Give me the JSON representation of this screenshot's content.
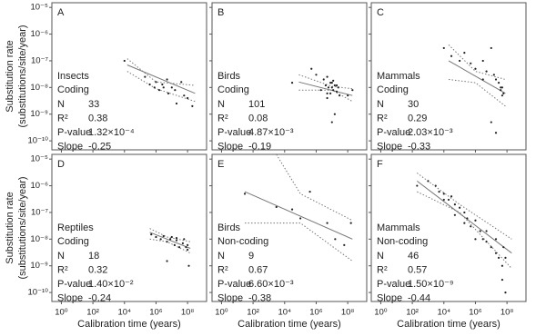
{
  "chart_data": [
    {
      "type": "scatter",
      "title": "A",
      "taxon": "Insects",
      "gene": "Coding",
      "ylabel": "Substitution rate",
      "ylabel2": "(substitutions/site/year)",
      "x": [
        10000.0,
        200000.0,
        400000.0,
        800000.0,
        1000000.0,
        1600000.0,
        2500000.0,
        3000000.0,
        5000000.0,
        6000000.0,
        10000000.0,
        16000000.0,
        20000000.0,
        40000000.0,
        60000000.0,
        100000000.0,
        200000000.0
      ],
      "y": [
        1e-07,
        2.5e-08,
        1.3e-08,
        1e-08,
        1.6e-08,
        8e-09,
        1.3e-08,
        1e-08,
        2e-08,
        6e-09,
        1e-08,
        8e-09,
        2.5e-09,
        1.6e-08,
        5e-09,
        4e-09,
        2e-09
      ],
      "fit": {
        "x": [
          15000.0,
          300000000.0
        ],
        "y": [
          7e-08,
          6e-09
        ]
      },
      "band_upper": {
        "x": [
          15000.0,
          1000000.0,
          300000000.0
        ],
        "y": [
          1.2e-07,
          1.6e-08,
          1.2e-08
        ]
      },
      "band_lower": {
        "x": [
          15000.0,
          1000000.0,
          300000000.0
        ],
        "y": [
          4e-08,
          9e-09,
          3e-09
        ]
      },
      "stats": [
        {
          "label": "N",
          "value": 33
        },
        {
          "label": "R²",
          "value": 0.38
        },
        {
          "label": "P-value",
          "value": {
            "value": 0.000132,
            "label": "1.32×10⁻⁴"
          }
        },
        {
          "label": "Slope",
          "value": -0.25
        }
      ],
      "xlim": [
        0.25,
        1600000000.0
      ],
      "ylim": [
        4.6e-11,
        1.5e-05
      ],
      "log": true,
      "xticks": [
        1,
        100,
        10000.0,
        1000000.0,
        100000000.0
      ],
      "yticks": [
        {
          "value": 1e-05,
          "label": "10⁻⁵"
        },
        {
          "value": 1e-06,
          "label": "10⁻⁶"
        },
        {
          "value": 1e-07,
          "label": "10⁻⁷"
        },
        {
          "value": 1e-08,
          "label": "10⁻⁸"
        },
        {
          "value": 1e-09,
          "label": "10⁻⁹"
        },
        {
          "value": 1e-10,
          "label": "10⁻¹⁰"
        }
      ]
    },
    {
      "type": "scatter",
      "title": "B",
      "taxon": "Birds",
      "gene": "Coding",
      "x": [
        30000.0,
        500000.0,
        1000000.0,
        2000000.0,
        3000000.0,
        4000000.0,
        5000000.0,
        6000000.0,
        8000000.0,
        10000000.0,
        12000000.0,
        15000000.0,
        20000000.0,
        25000000.0,
        30000000.0,
        10000000.0,
        8000000.0,
        12000000.0,
        20000000.0,
        5000000.0,
        15000000.0,
        100000000.0,
        200000000.0,
        5000000.0,
        10000000.0
      ],
      "y": [
        1.5e-08,
        5e-08,
        3e-08,
        8e-09,
        2e-08,
        1.2e-08,
        6e-09,
        1e-08,
        1.5e-08,
        1e-08,
        8e-09,
        1.2e-08,
        7e-09,
        1e-08,
        5e-09,
        1.5e-08,
        6e-09,
        1.8e-08,
        1.2e-08,
        2.5e-08,
        1e-09,
        5e-09,
        8e-09,
        4e-09,
        5e-10
      ],
      "fit": {
        "x": [
          80000.0,
          200000000.0
        ],
        "y": [
          1.6e-08,
          5e-09
        ]
      },
      "band_upper": {
        "x": [
          80000.0,
          10000000.0,
          200000000.0
        ],
        "y": [
          3e-08,
          1.1e-08,
          9e-09
        ]
      },
      "band_lower": {
        "x": [
          80000.0,
          10000000.0,
          200000000.0
        ],
        "y": [
          8e-09,
          8e-09,
          3e-09
        ]
      },
      "stats": [
        {
          "label": "N",
          "value": 101
        },
        {
          "label": "R²",
          "value": 0.08
        },
        {
          "label": "P-value",
          "value": {
            "value": 0.00487,
            "label": "4.87×10⁻³"
          }
        },
        {
          "label": "Slope",
          "value": -0.19
        }
      ],
      "xlim": [
        0.25,
        1600000000.0
      ],
      "ylim": [
        4.6e-11,
        1.5e-05
      ],
      "log": true,
      "xticks": [
        1,
        100,
        10000.0,
        1000000.0,
        100000000.0
      ],
      "yticks": [
        1e-05,
        1e-06,
        1e-07,
        1e-08,
        1e-09,
        1e-10
      ]
    },
    {
      "type": "scatter",
      "title": "C",
      "taxon": "Mammals",
      "gene": "Coding",
      "x": [
        10000.0,
        30000.0,
        100000.0,
        200000.0,
        500000.0,
        1000000.0,
        3000000.0,
        5000000.0,
        10000000.0,
        15000000.0,
        20000000.0,
        30000000.0,
        40000000.0,
        50000000.0,
        60000000.0,
        3000000.0,
        10000000.0,
        20000000.0,
        40000000.0,
        50000000.0
      ],
      "y": [
        3e-07,
        1.5e-07,
        1e-07,
        2e-07,
        8e-08,
        5e-08,
        1e-07,
        4e-08,
        3e-07,
        3e-08,
        2e-08,
        1.5e-08,
        8e-09,
        1e-08,
        6e-09,
        2e-08,
        5e-10,
        2e-10,
        1e-08,
        5e-09
      ],
      "fit": {
        "x": [
          20000.0,
          80000000.0
        ],
        "y": [
          1e-07,
          6e-09
        ]
      },
      "band_upper": {
        "x": [
          20000.0,
          1000000.0,
          80000000.0
        ],
        "y": [
          4e-07,
          4e-08,
          2e-08
        ]
      },
      "band_lower": {
        "x": [
          20000.0,
          1000000.0,
          80000000.0
        ],
        "y": [
          2e-08,
          1.5e-08,
          2e-09
        ]
      },
      "stats": [
        {
          "label": "N",
          "value": 30
        },
        {
          "label": "R²",
          "value": 0.29
        },
        {
          "label": "P-value",
          "value": {
            "value": 0.00203,
            "label": "2.03×10⁻³"
          }
        },
        {
          "label": "Slope",
          "value": -0.33
        }
      ],
      "xlim": [
        0.25,
        1600000000.0
      ],
      "ylim": [
        4.6e-11,
        1.5e-05
      ],
      "log": true,
      "xticks": [
        1,
        100,
        10000.0,
        1000000.0,
        100000000.0
      ],
      "yticks": [
        1e-05,
        1e-06,
        1e-07,
        1e-08,
        1e-09,
        1e-10
      ]
    },
    {
      "type": "scatter",
      "title": "D",
      "taxon": "Reptiles",
      "gene": "Coding",
      "ylabel": "Substitution rate",
      "ylabel2": "(substitutions/site/year)",
      "xlabel": "Calibration time (years)",
      "x": [
        500000.0,
        1000000.0,
        2000000.0,
        3000000.0,
        5000000.0,
        8000000.0,
        10000000.0,
        15000000.0,
        20000000.0,
        30000000.0,
        50000000.0,
        80000000.0,
        100000000.0,
        120000000.0,
        5000000.0,
        20000000.0,
        60000000.0,
        100000000.0
      ],
      "y": [
        1.5e-08,
        1.2e-08,
        1e-08,
        1.3e-08,
        8e-09,
        1e-08,
        1.2e-08,
        6e-09,
        9e-09,
        5e-09,
        7e-09,
        5e-09,
        4e-09,
        1e-09,
        1.5e-09,
        1.1e-08,
        1e-08,
        6e-09
      ],
      "fit": {
        "x": [
          400000.0,
          150000000.0
        ],
        "y": [
          1.8e-08,
          4.5e-09
        ]
      },
      "band_upper": {
        "x": [
          400000.0,
          5000000.0,
          150000000.0
        ],
        "y": [
          2.5e-08,
          1.2e-08,
          8e-09
        ]
      },
      "band_lower": {
        "x": [
          400000.0,
          5000000.0,
          150000000.0
        ],
        "y": [
          1e-08,
          8e-09,
          3e-09
        ]
      },
      "stats": [
        {
          "label": "N",
          "value": 18
        },
        {
          "label": "R²",
          "value": 0.32
        },
        {
          "label": "P-value",
          "value": {
            "value": 0.014,
            "label": "1.40×10⁻²"
          }
        },
        {
          "label": "Slope",
          "value": -0.24
        }
      ],
      "xlim": [
        0.25,
        1600000000.0
      ],
      "ylim": [
        4.6e-11,
        1.5e-05
      ],
      "log": true,
      "xticks": [
        {
          "value": 1,
          "label": "10⁰"
        },
        {
          "value": 100,
          "label": "10²"
        },
        {
          "value": 10000.0,
          "label": "10⁴"
        },
        {
          "value": 1000000.0,
          "label": "10⁶"
        },
        {
          "value": 100000000.0,
          "label": "10⁸"
        }
      ],
      "yticks": [
        {
          "value": 1e-05,
          "label": "10⁻⁵"
        },
        {
          "value": 1e-06,
          "label": "10⁻⁶"
        },
        {
          "value": 1e-07,
          "label": "10⁻⁷"
        },
        {
          "value": 1e-08,
          "label": "10⁻⁸"
        },
        {
          "value": 1e-09,
          "label": "10⁻⁹"
        },
        {
          "value": 1e-10,
          "label": "10⁻¹⁰"
        }
      ]
    },
    {
      "type": "scatter",
      "title": "E",
      "taxon": "Birds",
      "gene": "Non-coding",
      "xlabel": "Calibration time (years)",
      "x": [
        30,
        3000.0,
        30000.0,
        100000.0,
        400000.0,
        5000000.0,
        16000000.0,
        60000000.0,
        160000000.0
      ],
      "y": [
        5e-07,
        1.6e-07,
        1.3e-07,
        6e-08,
        6e-07,
        4e-08,
        1e-08,
        6e-09,
        4e-08
      ],
      "fit": {
        "x": [
          30,
          200000000.0
        ],
        "y": [
          6e-07,
          1e-08
        ]
      },
      "band_upper": {
        "x": [
          3000.0,
          100000.0,
          200000000.0
        ],
        "y": [
          1.5e-05,
          5e-07,
          5e-08
        ]
      },
      "band_lower": {
        "x": [
          30,
          100000.0,
          200000000.0
        ],
        "y": [
          4e-08,
          4e-08,
          1.5e-09
        ]
      },
      "stats": [
        {
          "label": "N",
          "value": 9
        },
        {
          "label": "R²",
          "value": 0.67
        },
        {
          "label": "P-value",
          "value": {
            "value": 0.0066,
            "label": "6.60×10⁻³"
          }
        },
        {
          "label": "Slope",
          "value": -0.38
        }
      ],
      "xlim": [
        0.25,
        1600000000.0
      ],
      "ylim": [
        4.6e-11,
        1.5e-05
      ],
      "log": true,
      "xticks": [
        {
          "value": 1,
          "label": "10⁰"
        },
        {
          "value": 100,
          "label": "10²"
        },
        {
          "value": 10000.0,
          "label": "10⁴"
        },
        {
          "value": 1000000.0,
          "label": "10⁶"
        },
        {
          "value": 100000000.0,
          "label": "10⁸"
        }
      ],
      "yticks": [
        1e-05,
        1e-06,
        1e-07,
        1e-08,
        1e-09,
        1e-10
      ]
    },
    {
      "type": "scatter",
      "title": "F",
      "taxon": "Mammals",
      "gene": "Non-coding",
      "xlabel": "Calibration time (years)",
      "x": [
        200,
        1000.0,
        3000.0,
        5000.0,
        10000.0,
        20000.0,
        30000.0,
        50000.0,
        100000.0,
        200000.0,
        300000.0,
        500000.0,
        1000000.0,
        2000000.0,
        3000000.0,
        5000000.0,
        10000000.0,
        20000000.0,
        30000000.0,
        50000000.0,
        60000000.0,
        80000000.0,
        10000.0,
        50000.0,
        200000.0,
        1000000.0,
        5000000.0,
        20000000.0,
        50000000.0,
        80000000.0
      ],
      "y": [
        1e-06,
        1.5e-06,
        1e-06,
        6e-07,
        5e-07,
        3e-07,
        4e-07,
        2e-07,
        1.5e-07,
        1e-07,
        6e-08,
        3e-08,
        5e-08,
        2e-08,
        1e-08,
        8e-09,
        5e-09,
        3e-09,
        2e-09,
        1e-09,
        5e-09,
        2e-09,
        3e-07,
        8e-08,
        4e-08,
        1e-08,
        2e-08,
        1e-08,
        3e-10,
        1e-10
      ],
      "fit": {
        "x": [
          200,
          200000000.0
        ],
        "y": [
          1.5e-06,
          3e-09
        ]
      },
      "band_upper": {
        "x": [
          200,
          100000.0,
          200000000.0
        ],
        "y": [
          3e-06,
          2e-07,
          1e-08
        ]
      },
      "band_lower": {
        "x": [
          200,
          100000.0,
          200000000.0
        ],
        "y": [
          6e-07,
          1e-07,
          8e-10
        ]
      },
      "stats": [
        {
          "label": "N",
          "value": 46
        },
        {
          "label": "R²",
          "value": 0.57
        },
        {
          "label": "P-value",
          "value": {
            "value": 1.5e-09,
            "label": "1.50×10⁻⁹"
          }
        },
        {
          "label": "Slope",
          "value": -0.44
        }
      ],
      "xlim": [
        0.25,
        1600000000.0
      ],
      "ylim": [
        4.6e-11,
        1.5e-05
      ],
      "log": true,
      "xticks": [
        {
          "value": 1,
          "label": "10⁰"
        },
        {
          "value": 100,
          "label": "10²"
        },
        {
          "value": 10000.0,
          "label": "10⁴"
        },
        {
          "value": 1000000.0,
          "label": "10⁶"
        },
        {
          "value": 100000000.0,
          "label": "10⁸"
        }
      ],
      "yticks": [
        1e-05,
        1e-06,
        1e-07,
        1e-08,
        1e-09,
        1e-10
      ]
    }
  ]
}
